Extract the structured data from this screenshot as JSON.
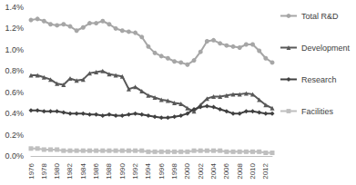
{
  "chart_data": {
    "type": "line",
    "categories": [
      "1976",
      null,
      "1978",
      null,
      "1980",
      null,
      "1982",
      null,
      "1984",
      null,
      "1986",
      null,
      "1988",
      null,
      "1990",
      null,
      "1992",
      null,
      "1994",
      null,
      "1996",
      null,
      "1998",
      null,
      "2000",
      null,
      "2002",
      null,
      "2004",
      null,
      "2006",
      null,
      "2008",
      null,
      "2010",
      null,
      "2012",
      null
    ],
    "series": [
      {
        "name": "Total R&D",
        "color": "#a6a6a6",
        "marker": "circle",
        "line_style": "solid",
        "values": [
          1.28,
          1.29,
          1.27,
          1.24,
          1.23,
          1.24,
          1.22,
          1.18,
          1.21,
          1.25,
          1.25,
          1.27,
          1.24,
          1.2,
          1.18,
          1.17,
          1.16,
          1.12,
          1.03,
          0.97,
          0.94,
          0.92,
          0.89,
          0.88,
          0.86,
          0.9,
          0.98,
          1.08,
          1.09,
          1.06,
          1.04,
          1.03,
          1.02,
          1.05,
          1.05,
          0.99,
          0.92,
          0.88
        ]
      },
      {
        "name": "Development",
        "color": "#595959",
        "marker": "triangle",
        "line_style": "solid",
        "values": [
          0.76,
          0.76,
          0.74,
          0.72,
          0.68,
          0.67,
          0.73,
          0.71,
          0.72,
          0.78,
          0.79,
          0.8,
          0.77,
          0.76,
          0.75,
          0.63,
          0.65,
          0.61,
          0.57,
          0.55,
          0.53,
          0.52,
          0.5,
          0.49,
          0.45,
          0.42,
          0.48,
          0.54,
          0.56,
          0.56,
          0.57,
          0.58,
          0.58,
          0.59,
          0.58,
          0.53,
          0.48,
          0.45
        ]
      },
      {
        "name": "Research",
        "color": "#404040",
        "marker": "diamond",
        "line_style": "solid",
        "values": [
          0.43,
          0.43,
          0.42,
          0.42,
          0.42,
          0.41,
          0.4,
          0.4,
          0.4,
          0.39,
          0.39,
          0.38,
          0.39,
          0.38,
          0.38,
          0.39,
          0.4,
          0.39,
          0.38,
          0.37,
          0.36,
          0.36,
          0.37,
          0.38,
          0.4,
          0.44,
          0.46,
          0.47,
          0.46,
          0.44,
          0.42,
          0.4,
          0.4,
          0.42,
          0.42,
          0.41,
          0.4,
          0.4
        ]
      },
      {
        "name": "Facilities",
        "color": "#bfbfbf",
        "marker": "square",
        "line_style": "solid",
        "values": [
          0.07,
          0.07,
          0.06,
          0.06,
          0.06,
          0.05,
          0.05,
          0.05,
          0.05,
          0.05,
          0.05,
          0.05,
          0.05,
          0.05,
          0.05,
          0.05,
          0.05,
          0.05,
          0.04,
          0.04,
          0.04,
          0.04,
          0.04,
          0.04,
          0.04,
          0.05,
          0.05,
          0.05,
          0.05,
          0.05,
          0.04,
          0.04,
          0.04,
          0.04,
          0.04,
          0.04,
          0.03,
          0.03
        ]
      }
    ],
    "ylim": [
      0,
      1.4
    ],
    "yticks": [
      {
        "value": 0,
        "label": "0.0%"
      },
      {
        "value": 0.2,
        "label": "0.2%"
      },
      {
        "value": 0.4,
        "label": "0.4%"
      },
      {
        "value": 0.6,
        "label": "0.6%"
      },
      {
        "value": 0.8,
        "label": "0.8%"
      },
      {
        "value": 1.0,
        "label": "1.0%"
      },
      {
        "value": 1.2,
        "label": "1.2%"
      },
      {
        "value": 1.4,
        "label": "1.4%"
      }
    ],
    "grid": false,
    "legend": "right"
  }
}
